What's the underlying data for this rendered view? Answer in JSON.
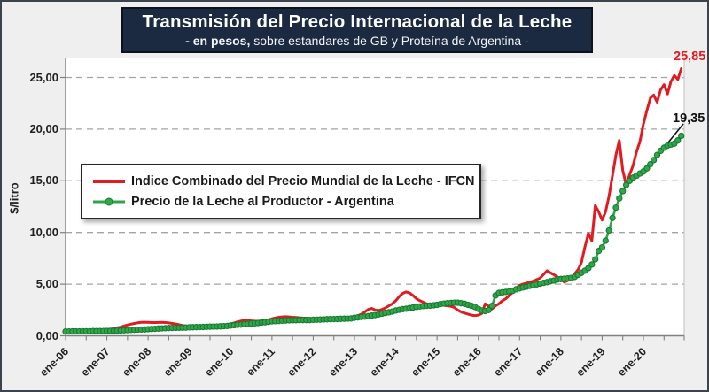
{
  "title": {
    "main": "Transmisión del Precio Internacional de la Leche",
    "subtitle_bold": "- en pesos,",
    "subtitle_rest": " sobre estandares de GB y Proteína de  Argentina -"
  },
  "y_axis": {
    "label": "$/litro",
    "ticks": [
      "0,00",
      "5,00",
      "10,00",
      "15,00",
      "20,00",
      "25,00"
    ],
    "tick_values": [
      0,
      5,
      10,
      15,
      20,
      25
    ]
  },
  "legend": {
    "items": [
      {
        "label": "Indice Combinado del Precio Mundial de la Leche - IFCN"
      },
      {
        "label": "Precio de la Leche al Productor - Argentina"
      }
    ]
  },
  "annotations": {
    "red_end_label": "25,85",
    "green_end_label": "19,35"
  },
  "colors": {
    "red": "#E11B22",
    "green_line": "#2FA348",
    "green_fill": "#33A646",
    "green_edge": "#157A36",
    "navy": "#1B2A40",
    "grid": "#A3A3A3",
    "axis": "#808080",
    "plot_border_right": "#C9C9C9",
    "bg": "#EFEFEF",
    "label_dark": "#111111"
  },
  "chart_data": {
    "type": "line",
    "title": "Transmisión del Precio Internacional de la Leche",
    "subtitle": "- en pesos, sobre estandares de GB y Proteína de  Argentina -",
    "xlabel": "",
    "ylabel": "$/litro",
    "ylim": [
      0,
      27
    ],
    "grid": "horizontal-dashed",
    "legend_position": "inside-left",
    "x_unit": "monthly",
    "x_range": [
      "ene-06",
      "dic-20"
    ],
    "x_tick_labels": [
      "ene-06",
      "ene-07",
      "ene-08",
      "ene-09",
      "ene-10",
      "ene-11",
      "ene-12",
      "ene-13",
      "ene-14",
      "ene-15",
      "ene-16",
      "ene-17",
      "ene-18",
      "ene-19",
      "ene-20"
    ],
    "series": [
      {
        "name": "Indice Combinado del Precio Mundial de la Leche - IFCN",
        "color": "#E11B22",
        "marker": "none",
        "end_value_label": "25,85",
        "values": [
          0.5,
          0.5,
          0.51,
          0.51,
          0.52,
          0.52,
          0.53,
          0.54,
          0.55,
          0.56,
          0.57,
          0.58,
          0.6,
          0.63,
          0.7,
          0.77,
          0.85,
          0.95,
          1.05,
          1.13,
          1.2,
          1.26,
          1.3,
          1.32,
          1.3,
          1.28,
          1.28,
          1.29,
          1.3,
          1.28,
          1.25,
          1.2,
          1.15,
          1.08,
          1.0,
          0.95,
          0.9,
          0.87,
          0.85,
          0.82,
          0.8,
          0.8,
          0.82,
          0.85,
          0.9,
          0.95,
          1.0,
          1.05,
          1.15,
          1.25,
          1.35,
          1.43,
          1.5,
          1.48,
          1.45,
          1.42,
          1.4,
          1.45,
          1.5,
          1.55,
          1.65,
          1.73,
          1.8,
          1.83,
          1.85,
          1.83,
          1.8,
          1.78,
          1.75,
          1.72,
          1.7,
          1.65,
          1.6,
          1.59,
          1.58,
          1.56,
          1.55,
          1.57,
          1.6,
          1.62,
          1.65,
          1.67,
          1.7,
          1.75,
          1.8,
          1.95,
          2.1,
          2.3,
          2.55,
          2.65,
          2.5,
          2.45,
          2.55,
          2.7,
          2.9,
          3.1,
          3.4,
          3.8,
          4.1,
          4.25,
          4.15,
          3.9,
          3.6,
          3.4,
          3.25,
          3.1,
          3.05,
          3.0,
          3.0,
          2.95,
          2.95,
          2.9,
          2.85,
          2.75,
          2.5,
          2.3,
          2.2,
          2.1,
          2.0,
          1.95,
          2.0,
          2.15,
          3.1,
          2.85,
          2.6,
          2.9,
          3.1,
          3.4,
          3.6,
          3.9,
          4.2,
          4.6,
          4.9,
          5.0,
          5.1,
          5.2,
          5.3,
          5.45,
          5.6,
          5.95,
          6.3,
          6.1,
          5.9,
          5.7,
          5.5,
          5.2,
          5.35,
          5.6,
          6.0,
          6.4,
          7.1,
          8.6,
          9.9,
          9.2,
          12.6,
          12.0,
          11.2,
          12.0,
          13.5,
          15.5,
          17.5,
          18.9,
          16.0,
          14.6,
          15.6,
          16.5,
          17.8,
          18.8,
          20.5,
          21.8,
          23.0,
          23.3,
          22.6,
          23.8,
          24.3,
          23.4,
          24.6,
          25.2,
          24.8,
          25.85
        ]
      },
      {
        "name": "Precio de la Leche al Productor - Argentina",
        "color": "#2FA348",
        "marker": "circle",
        "end_value_label": "19,35",
        "values": [
          0.42,
          0.42,
          0.43,
          0.43,
          0.43,
          0.44,
          0.44,
          0.44,
          0.45,
          0.45,
          0.45,
          0.46,
          0.47,
          0.48,
          0.49,
          0.5,
          0.51,
          0.53,
          0.55,
          0.57,
          0.58,
          0.6,
          0.61,
          0.62,
          0.64,
          0.66,
          0.68,
          0.7,
          0.72,
          0.74,
          0.75,
          0.76,
          0.77,
          0.78,
          0.79,
          0.8,
          0.82,
          0.83,
          0.84,
          0.85,
          0.86,
          0.87,
          0.88,
          0.89,
          0.9,
          0.92,
          0.93,
          0.95,
          1.0,
          1.03,
          1.06,
          1.09,
          1.12,
          1.15,
          1.18,
          1.21,
          1.24,
          1.28,
          1.31,
          1.35,
          1.4,
          1.42,
          1.44,
          1.46,
          1.48,
          1.5,
          1.51,
          1.51,
          1.52,
          1.52,
          1.52,
          1.52,
          1.55,
          1.56,
          1.57,
          1.58,
          1.6,
          1.61,
          1.62,
          1.63,
          1.64,
          1.65,
          1.66,
          1.68,
          1.75,
          1.78,
          1.82,
          1.86,
          1.9,
          1.95,
          2.0,
          2.07,
          2.14,
          2.21,
          2.28,
          2.35,
          2.45,
          2.52,
          2.58,
          2.62,
          2.68,
          2.74,
          2.8,
          2.84,
          2.88,
          2.9,
          2.92,
          2.95,
          3.0,
          3.07,
          3.12,
          3.16,
          3.18,
          3.2,
          3.2,
          3.15,
          3.1,
          3.0,
          2.9,
          2.8,
          2.6,
          2.45,
          2.4,
          2.5,
          2.9,
          3.9,
          4.15,
          4.2,
          4.25,
          4.3,
          4.35,
          4.5,
          4.6,
          4.68,
          4.75,
          4.83,
          4.9,
          4.98,
          5.05,
          5.13,
          5.2,
          5.28,
          5.35,
          5.45,
          5.5,
          5.52,
          5.55,
          5.6,
          5.7,
          5.9,
          6.1,
          6.3,
          6.55,
          6.9,
          7.4,
          8.2,
          8.55,
          9.2,
          10.2,
          11.4,
          12.4,
          13.3,
          14.0,
          14.6,
          15.0,
          15.3,
          15.5,
          15.7,
          15.9,
          16.2,
          16.6,
          17.0,
          17.5,
          17.9,
          18.2,
          18.4,
          18.5,
          18.6,
          18.9,
          19.35
        ]
      }
    ]
  }
}
